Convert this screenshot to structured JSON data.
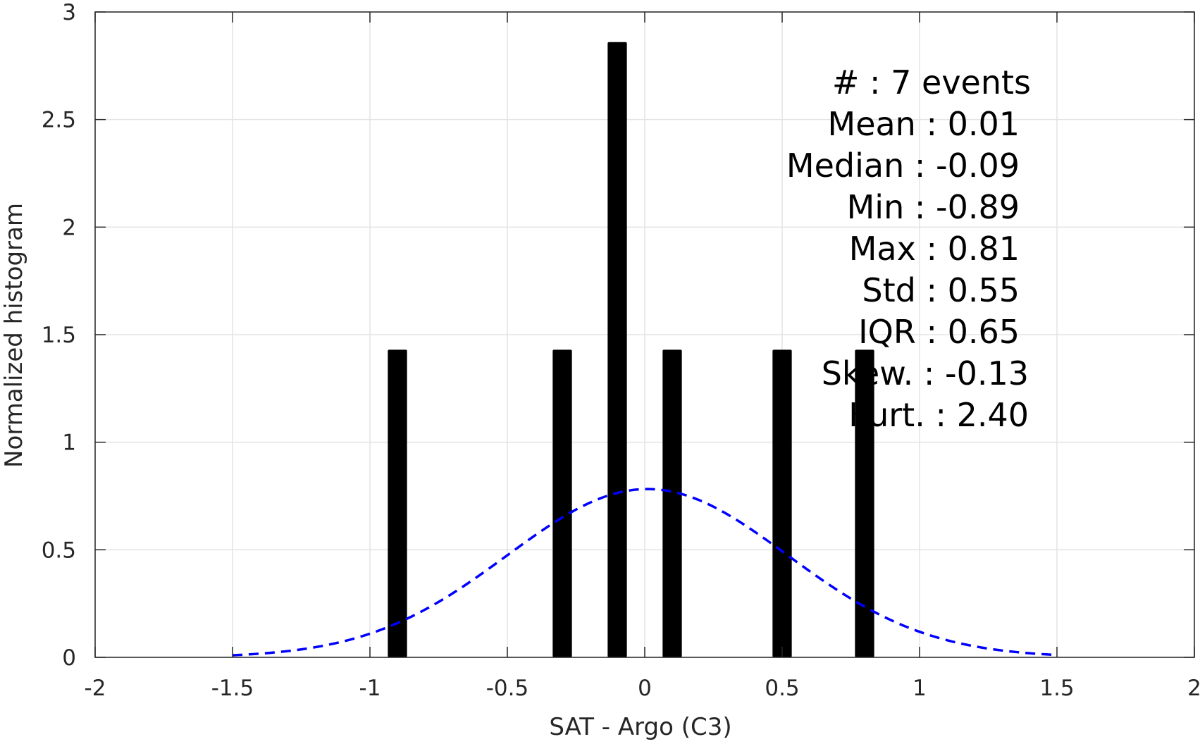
{
  "chart_data": {
    "type": "bar",
    "xlabel": "SAT - Argo (C3)",
    "ylabel": "Normalized histogram",
    "xlim": [
      -2,
      2
    ],
    "ylim": [
      0,
      3
    ],
    "x_ticks": [
      -2,
      -1.5,
      -1,
      -0.5,
      0,
      0.5,
      1,
      1.5,
      2
    ],
    "x_tick_labels": [
      "-2",
      "-1.5",
      "-1",
      "-0.5",
      "0",
      "0.5",
      "1",
      "1.5",
      "2"
    ],
    "y_ticks": [
      0,
      0.5,
      1,
      1.5,
      2,
      2.5,
      3
    ],
    "y_tick_labels": [
      "0",
      "0.5",
      "1",
      "1.5",
      "2",
      "2.5",
      "3"
    ],
    "grid": true,
    "bar_width": 0.07,
    "bars": [
      {
        "x": -0.9,
        "value": 1.43
      },
      {
        "x": -0.3,
        "value": 1.43
      },
      {
        "x": -0.1,
        "value": 2.86
      },
      {
        "x": 0.1,
        "value": 1.43
      },
      {
        "x": 0.5,
        "value": 1.43
      },
      {
        "x": 0.8,
        "value": 1.43
      }
    ],
    "fit_curve": {
      "style": "dashed",
      "color": "#0000ff",
      "distribution": "normal",
      "mean": 0.01,
      "std": 0.51,
      "x_range": [
        -1.5,
        1.5
      ]
    },
    "bar_color": "#000000",
    "annotations": [
      "#  : 7 events",
      "Mean : 0.01",
      "Median : -0.09",
      "Min : -0.89",
      "Max : 0.81",
      "Std : 0.55",
      "IQR : 0.65",
      "Skew. : -0.13",
      "Kurt. : 2.40"
    ]
  }
}
